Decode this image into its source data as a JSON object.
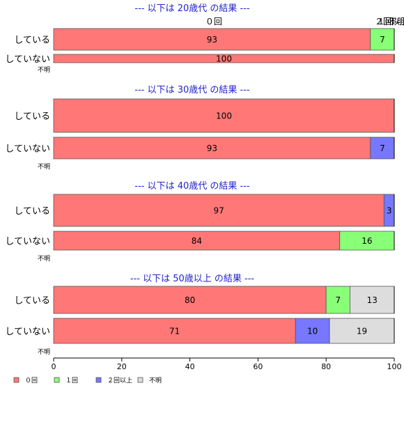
{
  "chart_data": {
    "type": "bar",
    "orientation": "horizontal",
    "stacked": "percent",
    "xlim": [
      0,
      100
    ],
    "xticks": [
      0,
      20,
      40,
      60,
      80,
      100
    ],
    "legend": {
      "placement": "bottom-left",
      "items": [
        {
          "label": "０回",
          "color": "#ff7777"
        },
        {
          "label": "１回",
          "color": "#88ff77"
        },
        {
          "label": "２回以上",
          "color": "#7777ff"
        },
        {
          "label": "不明",
          "color": "#dddddd"
        }
      ]
    },
    "top_category_labels": [
      "０回",
      "１回",
      "２回以上",
      "不明"
    ],
    "panels": [
      {
        "title": "--- 以下は 20歳代 の結果 ---",
        "unknown_label": "不明",
        "rows": [
          {
            "label": "している",
            "values": [
              93,
              7,
              0,
              0
            ]
          },
          {
            "label": "していない",
            "values": [
              100,
              0,
              0,
              0
            ]
          }
        ]
      },
      {
        "title": "--- 以下は 30歳代 の結果 ---",
        "unknown_label": "不明",
        "rows": [
          {
            "label": "している",
            "values": [
              100,
              0,
              0,
              0
            ]
          },
          {
            "label": "していない",
            "values": [
              93,
              0,
              7,
              0
            ]
          }
        ]
      },
      {
        "title": "--- 以下は 40歳代 の結果 ---",
        "unknown_label": "不明",
        "rows": [
          {
            "label": "している",
            "values": [
              97,
              0,
              3,
              0
            ]
          },
          {
            "label": "していない",
            "values": [
              84,
              16,
              0,
              0
            ]
          }
        ]
      },
      {
        "title": "--- 以下は 50歳以上 の結果 ---",
        "unknown_label": "不明",
        "rows": [
          {
            "label": "している",
            "values": [
              80,
              7,
              0,
              13
            ]
          },
          {
            "label": "していない",
            "values": [
              71,
              0,
              10,
              19
            ]
          }
        ]
      }
    ]
  }
}
